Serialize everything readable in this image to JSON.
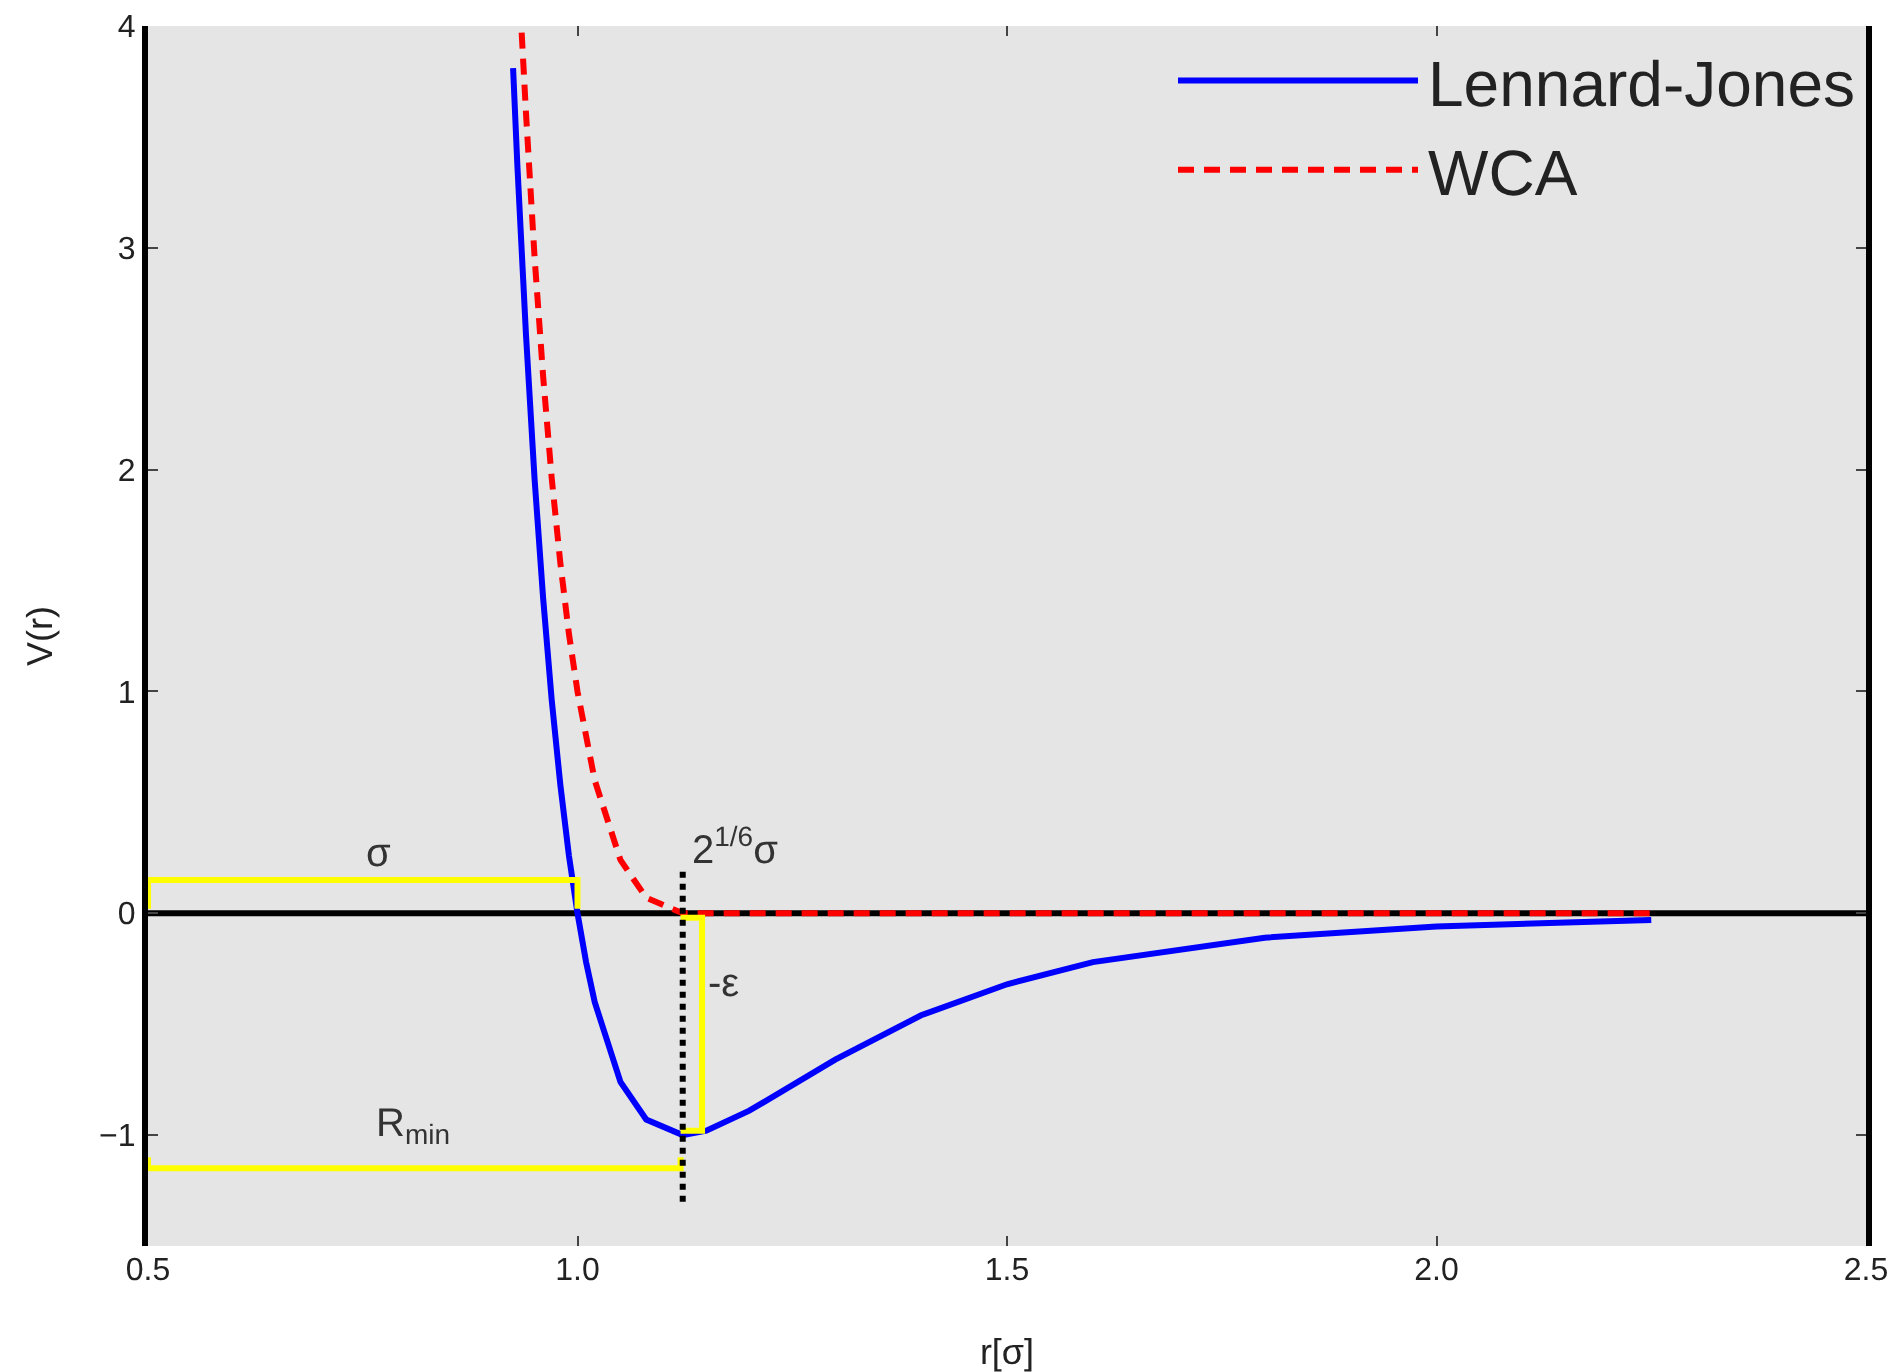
{
  "chart_data": {
    "type": "line",
    "xlabel": "r[σ]",
    "ylabel": "V(r)",
    "xlim": [
      0.5,
      2.5
    ],
    "xticks": [
      0.5,
      {
        "value": 1,
        "label": "1.0"
      },
      1.5,
      {
        "value": 2,
        "label": "2.0"
      },
      2.5
    ],
    "ylim": [
      -1.5,
      4
    ],
    "yticks": [
      {
        "value": -1,
        "label": "−1"
      },
      0,
      1,
      2,
      3,
      4
    ],
    "grid": false,
    "legend": "top right",
    "line_style": "solid",
    "marker": "none",
    "series": [
      {
        "name": "Lennard-Jones",
        "color": "#0000ff",
        "x": [
          0.925,
          0.93,
          0.94,
          0.95,
          0.96,
          0.97,
          0.98,
          0.99,
          1.0,
          1.01,
          1.02,
          1.05,
          1.08,
          1.1225,
          1.15,
          1.2,
          1.3,
          1.4,
          1.5,
          1.6,
          1.8,
          2.0,
          2.25
        ],
        "values": [
          3.81,
          3.37,
          2.61,
          1.96,
          1.42,
          0.96,
          0.58,
          0.26,
          0,
          -0.22,
          -0.4,
          -0.76,
          -0.93,
          -1,
          -0.98,
          -0.89,
          -0.66,
          -0.46,
          -0.32,
          -0.22,
          -0.11,
          -0.06,
          -0.03
        ]
      },
      {
        "name": "WCA",
        "color": "#ff0000",
        "line_style": "dashed",
        "x": [
          0.935,
          0.94,
          0.95,
          0.96,
          0.97,
          0.98,
          0.99,
          1.0,
          1.02,
          1.05,
          1.08,
          1.1225,
          2.25
        ],
        "values": [
          3.97,
          3.61,
          2.96,
          2.42,
          1.96,
          1.58,
          1.26,
          1.0,
          0.6,
          0.24,
          0.07,
          0,
          0
        ]
      },
      {
        "color": "#ffff00",
        "x": [
          0.5,
          0.5,
          1.0,
          1.0
        ],
        "values": [
          0.02,
          0.15,
          0.15,
          0.02
        ]
      },
      {
        "color": "#ffff00",
        "x": [
          0.5,
          0.5,
          1.12,
          1.12
        ],
        "values": [
          -1.1,
          -1.15,
          -1.15,
          -1.1
        ]
      },
      {
        "color": "#ffff00",
        "x": [
          1.12,
          1.145,
          1.145,
          1.12
        ],
        "values": [
          -0.02,
          -0.02,
          -0.98,
          -0.98
        ]
      },
      {
        "color": "#000000",
        "line_style": "dotted",
        "x": [
          1.1225,
          1.1225
        ],
        "values": [
          -1.3,
          0.2
        ]
      }
    ],
    "ref_lines": [
      {
        "axis": "y",
        "value": 0,
        "color": "#000000"
      }
    ],
    "annotations": [
      "σ",
      "2$^{1/6}$σ",
      "-ε",
      "R$_{min}$"
    ]
  }
}
